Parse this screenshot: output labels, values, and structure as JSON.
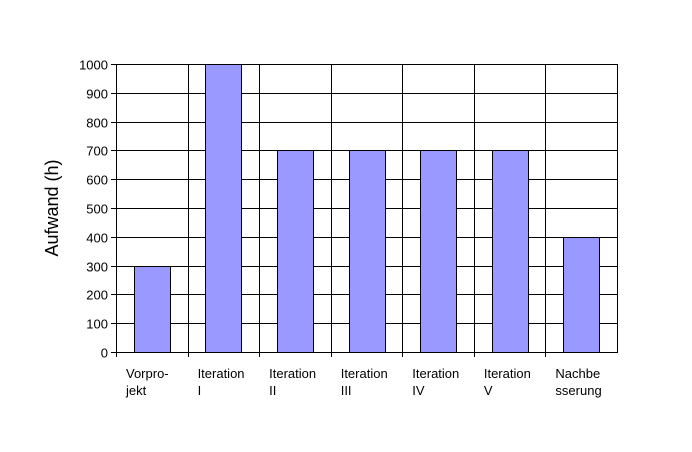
{
  "chart_data": {
    "type": "bar",
    "title": "",
    "xlabel": "",
    "ylabel": "Aufwand (h)",
    "categories": [
      [
        "Vorpro-",
        "jekt"
      ],
      [
        "Iteration",
        "I"
      ],
      [
        "Iteration",
        "II"
      ],
      [
        "Iteration",
        "III"
      ],
      [
        "Iteration",
        "IV"
      ],
      [
        "Iteration",
        "V"
      ],
      [
        "Nachbe",
        "sserung"
      ]
    ],
    "values": [
      300,
      1000,
      700,
      700,
      700,
      700,
      400
    ],
    "ylim": [
      0,
      1000
    ],
    "yticks": [
      0,
      100,
      200,
      300,
      400,
      500,
      600,
      700,
      800,
      900,
      1000
    ],
    "grid": true,
    "legend": "none",
    "colors": {
      "bar_fill": "#9999ff",
      "bar_stroke": "#000000",
      "grid": "#000000",
      "background": "#ffffff"
    }
  }
}
